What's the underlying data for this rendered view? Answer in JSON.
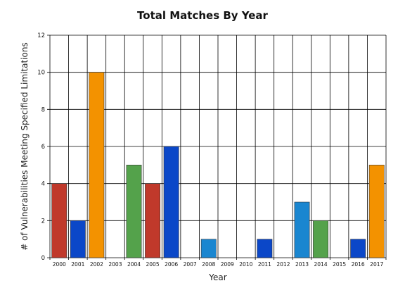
{
  "chart_data": {
    "type": "bar",
    "title": "Total Matches By Year",
    "xlabel": "Year",
    "ylabel": "# of Vulnerabilities Meeting Specified Limitations",
    "ylim": [
      0,
      12
    ],
    "yticks": [
      0,
      2,
      4,
      6,
      8,
      10,
      12
    ],
    "grid": true,
    "categories": [
      "2000",
      "2001",
      "2002",
      "2003",
      "2004",
      "2005",
      "2006",
      "2007",
      "2008",
      "2009",
      "2010",
      "2011",
      "2012",
      "2013",
      "2014",
      "2015",
      "2016",
      "2017"
    ],
    "values": [
      4,
      2,
      10,
      0,
      5,
      4,
      6,
      0,
      1,
      0,
      0,
      1,
      0,
      3,
      2,
      0,
      1,
      5
    ],
    "colors": [
      "#c0392b",
      "#0b47c8",
      "#f39200",
      "#0b47c8",
      "#54a24b",
      "#c0392b",
      "#0b47c8",
      "#0b47c8",
      "#1a86d0",
      "#0b47c8",
      "#0b47c8",
      "#0b47c8",
      "#0b47c8",
      "#1a86d0",
      "#54a24b",
      "#0b47c8",
      "#0b47c8",
      "#f39200"
    ]
  }
}
